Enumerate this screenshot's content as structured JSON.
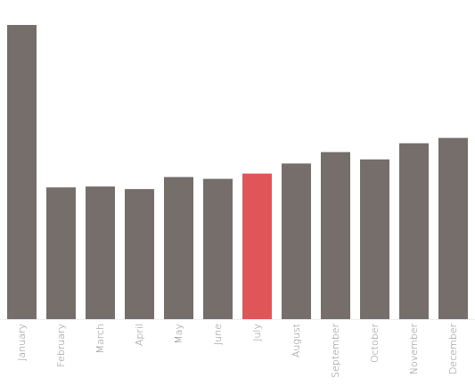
{
  "chart_data": {
    "type": "bar",
    "categories": [
      "January",
      "February",
      "March",
      "April",
      "May",
      "June",
      "July",
      "August",
      "September",
      "October",
      "November",
      "December"
    ],
    "values": [
      100,
      44.8,
      45.1,
      44.2,
      48.3,
      47.7,
      49.5,
      52.9,
      56.8,
      54.3,
      59.8,
      61.6
    ],
    "highlight": "July",
    "title": "",
    "xlabel": "",
    "ylabel": "",
    "ylim": [
      0,
      100
    ],
    "grid": false,
    "legend": "none",
    "colors": {
      "bar": "#766e6b",
      "highlight": "#e05658",
      "label": "#8a8482",
      "baseline": "#eeeeee"
    }
  }
}
